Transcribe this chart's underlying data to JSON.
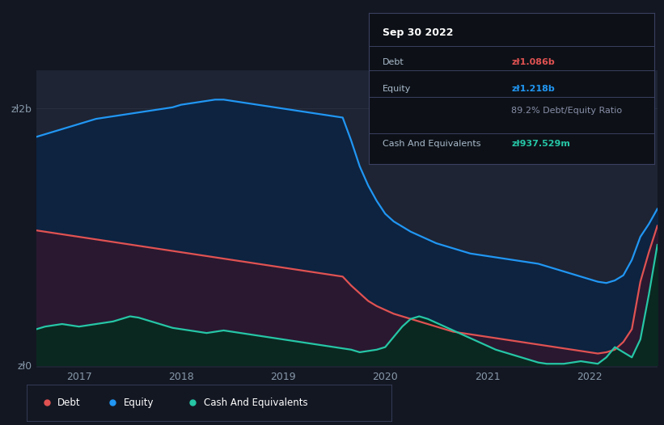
{
  "background_color": "#131722",
  "plot_bg_color": "#1e2433",
  "debt_color": "#e05252",
  "equity_color": "#2196f3",
  "cash_color": "#26c6a6",
  "equity_fill": "#1a3a5c",
  "debt_fill": "#3a1a2a",
  "cash_fill": "#0d2e2a",
  "grid_color": "#2a3040",
  "x_tick_labels": [
    "2017",
    "2018",
    "2019",
    "2020",
    "2021",
    "2022"
  ],
  "tooltip": {
    "title": "Sep 30 2022",
    "rows": [
      {
        "label": "Debt",
        "value": "zł1.086b",
        "value_color": "#e05252"
      },
      {
        "label": "Equity",
        "value": "zł1.218b",
        "value_color": "#2196f3"
      },
      {
        "label": "",
        "value": "89.2% Debt/Equity Ratio",
        "value_color": "#888ea8"
      },
      {
        "label": "Cash And Equivalents",
        "value": "zł937.529m",
        "value_color": "#26c6a6"
      }
    ]
  },
  "legend": [
    {
      "label": "Debt",
      "color": "#e05252"
    },
    {
      "label": "Equity",
      "color": "#2196f3"
    },
    {
      "label": "Cash And Equivalents",
      "color": "#26c6a6"
    }
  ],
  "equity_data": [
    1.78,
    1.8,
    1.82,
    1.84,
    1.86,
    1.88,
    1.9,
    1.92,
    1.93,
    1.94,
    1.95,
    1.96,
    1.97,
    1.98,
    1.99,
    2.0,
    2.01,
    2.03,
    2.04,
    2.05,
    2.06,
    2.07,
    2.07,
    2.06,
    2.05,
    2.04,
    2.03,
    2.02,
    2.01,
    2.0,
    1.99,
    1.98,
    1.97,
    1.96,
    1.95,
    1.94,
    1.93,
    1.75,
    1.55,
    1.4,
    1.28,
    1.18,
    1.12,
    1.08,
    1.04,
    1.01,
    0.98,
    0.95,
    0.93,
    0.91,
    0.89,
    0.87,
    0.86,
    0.85,
    0.84,
    0.83,
    0.82,
    0.81,
    0.8,
    0.79,
    0.77,
    0.75,
    0.73,
    0.71,
    0.69,
    0.67,
    0.65,
    0.64,
    0.66,
    0.7,
    0.82,
    1.0,
    1.1,
    1.218
  ],
  "debt_data": [
    1.05,
    1.04,
    1.03,
    1.02,
    1.01,
    1.0,
    0.99,
    0.98,
    0.97,
    0.96,
    0.95,
    0.94,
    0.93,
    0.92,
    0.91,
    0.9,
    0.89,
    0.88,
    0.87,
    0.86,
    0.85,
    0.84,
    0.83,
    0.82,
    0.81,
    0.8,
    0.79,
    0.78,
    0.77,
    0.76,
    0.75,
    0.74,
    0.73,
    0.72,
    0.71,
    0.7,
    0.69,
    0.62,
    0.56,
    0.5,
    0.46,
    0.43,
    0.4,
    0.38,
    0.36,
    0.34,
    0.32,
    0.3,
    0.28,
    0.26,
    0.25,
    0.24,
    0.23,
    0.22,
    0.21,
    0.2,
    0.19,
    0.18,
    0.17,
    0.16,
    0.15,
    0.14,
    0.13,
    0.12,
    0.11,
    0.1,
    0.09,
    0.1,
    0.12,
    0.18,
    0.28,
    0.65,
    0.88,
    1.086
  ],
  "cash_data": [
    0.28,
    0.3,
    0.31,
    0.32,
    0.31,
    0.3,
    0.31,
    0.32,
    0.33,
    0.34,
    0.36,
    0.38,
    0.37,
    0.35,
    0.33,
    0.31,
    0.29,
    0.28,
    0.27,
    0.26,
    0.25,
    0.26,
    0.27,
    0.26,
    0.25,
    0.24,
    0.23,
    0.22,
    0.21,
    0.2,
    0.19,
    0.18,
    0.17,
    0.16,
    0.15,
    0.14,
    0.13,
    0.12,
    0.1,
    0.11,
    0.12,
    0.14,
    0.22,
    0.3,
    0.36,
    0.38,
    0.36,
    0.33,
    0.3,
    0.27,
    0.24,
    0.21,
    0.18,
    0.15,
    0.12,
    0.1,
    0.08,
    0.06,
    0.04,
    0.02,
    0.01,
    0.01,
    0.01,
    0.02,
    0.03,
    0.02,
    0.01,
    0.06,
    0.14,
    0.1,
    0.06,
    0.2,
    0.55,
    0.9375
  ]
}
